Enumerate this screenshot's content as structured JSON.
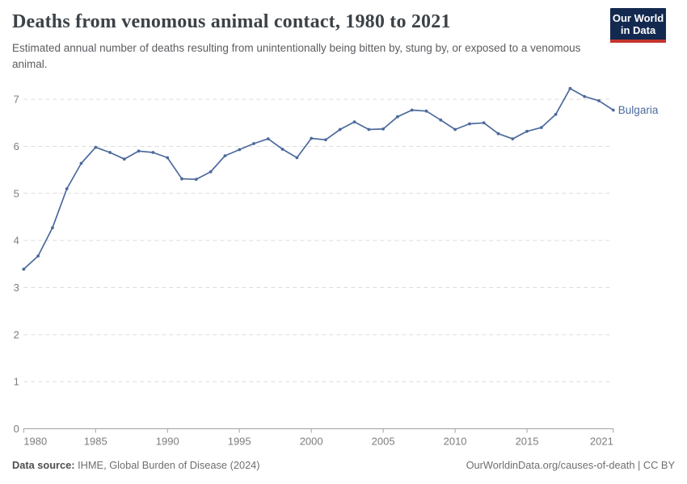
{
  "header": {
    "title": "Deaths from venomous animal contact, 1980 to 2021",
    "subtitle": "Estimated annual number of deaths resulting from unintentionally being bitten by, stung by, or exposed to a venomous animal.",
    "logo": {
      "line1": "Our World",
      "line2": "in Data"
    }
  },
  "chart_data": {
    "type": "line",
    "title": "Deaths from venomous animal contact, 1980 to 2021",
    "xlabel": "",
    "ylabel": "",
    "x": [
      1980,
      1981,
      1982,
      1983,
      1984,
      1985,
      1986,
      1987,
      1988,
      1989,
      1990,
      1991,
      1992,
      1993,
      1994,
      1995,
      1996,
      1997,
      1998,
      1999,
      2000,
      2001,
      2002,
      2003,
      2004,
      2005,
      2006,
      2007,
      2008,
      2009,
      2010,
      2011,
      2012,
      2013,
      2014,
      2015,
      2016,
      2017,
      2018,
      2019,
      2020,
      2021
    ],
    "series": [
      {
        "name": "Bulgaria",
        "color": "#4C6A9C",
        "values": [
          3.39,
          3.67,
          4.27,
          5.1,
          5.64,
          5.98,
          5.87,
          5.73,
          5.9,
          5.87,
          5.76,
          5.31,
          5.3,
          5.46,
          5.8,
          5.93,
          6.06,
          6.16,
          5.94,
          5.76,
          6.17,
          6.14,
          6.36,
          6.52,
          6.36,
          6.37,
          6.63,
          6.77,
          6.75,
          6.56,
          6.36,
          6.48,
          6.5,
          6.27,
          6.16,
          6.32,
          6.4,
          6.68,
          7.23,
          7.06,
          6.97,
          6.77
        ]
      }
    ],
    "xticks": [
      1980,
      1985,
      1990,
      1995,
      2000,
      2005,
      2010,
      2015,
      2021
    ],
    "yticks": [
      0,
      1,
      2,
      3,
      4,
      5,
      6,
      7
    ],
    "ylim": [
      0,
      7.4
    ],
    "xlim": [
      1980,
      2021
    ],
    "grid": "horizontal-dashed",
    "legend_position": "line-end-label"
  },
  "footer": {
    "datasource_label": "Data source:",
    "datasource_value": " IHME, Global Burden of Disease (2024)",
    "link": "OurWorldinData.org/causes-of-death | CC BY"
  },
  "colors": {
    "line": "#4C6A9C",
    "logo_bg": "#13294f",
    "logo_stripe": "#c5352e",
    "gridline": "#dcdcdc",
    "axis": "#a1a1a1",
    "tick_label": "#7d7d7d"
  }
}
